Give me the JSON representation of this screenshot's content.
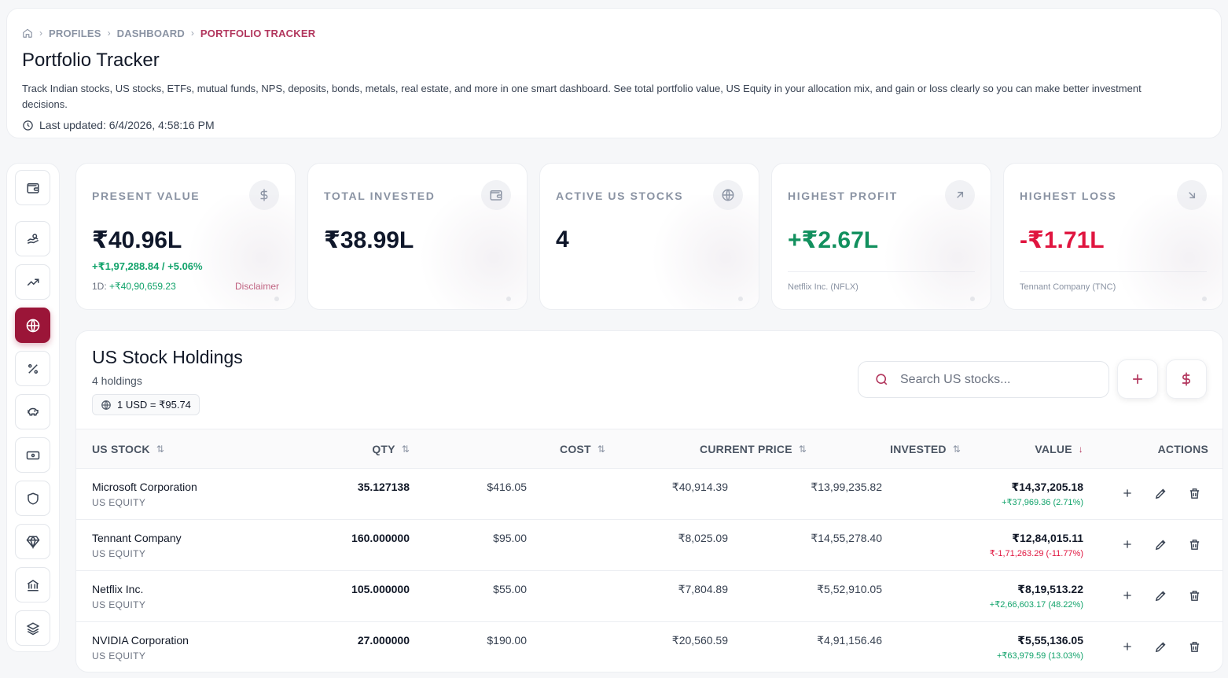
{
  "breadcrumb": {
    "items": [
      "PROFILES",
      "DASHBOARD",
      "PORTFOLIO TRACKER"
    ]
  },
  "page": {
    "title": "Portfolio Tracker",
    "description": "Track Indian stocks, US stocks, ETFs, mutual funds, NPS, deposits, bonds, metals, real estate, and more in one smart dashboard. See total portfolio value, US Equity in your allocation mix, and gain or loss clearly so you can make better investment decisions.",
    "last_updated": "Last updated: 6/4/2026, 4:58:16 PM"
  },
  "sidebar": {
    "items": [
      {
        "icon": "wallet-icon"
      },
      {
        "icon": "hand-coins-icon"
      },
      {
        "icon": "trending-up-icon"
      },
      {
        "icon": "globe-icon",
        "active": true
      },
      {
        "icon": "percent-icon"
      },
      {
        "icon": "piggy-bank-icon"
      },
      {
        "icon": "banknote-icon"
      },
      {
        "icon": "shield-icon"
      },
      {
        "icon": "gem-icon"
      },
      {
        "icon": "bank-icon"
      },
      {
        "icon": "layers-icon"
      }
    ]
  },
  "stats": {
    "present_value": {
      "label": "PRESENT VALUE",
      "value": "₹40.96L",
      "change": "+₹1,97,288.84 / +5.06%",
      "day_label": "1D:",
      "day_value": "+₹40,90,659.23",
      "disclaimer": "Disclaimer",
      "icon": "dollar-icon"
    },
    "total_invested": {
      "label": "TOTAL INVESTED",
      "value": "₹38.99L",
      "icon": "wallet-icon"
    },
    "active_us_stocks": {
      "label": "ACTIVE US STOCKS",
      "value": "4",
      "icon": "globe-icon"
    },
    "highest_profit": {
      "label": "HIGHEST PROFIT",
      "value": "+₹2.67L",
      "note": "Netflix Inc. (NFLX)",
      "icon": "arrow-up-right-icon"
    },
    "highest_loss": {
      "label": "HIGHEST LOSS",
      "value": "-₹1.71L",
      "note": "Tennant Company (TNC)",
      "icon": "arrow-down-right-icon"
    }
  },
  "holdings": {
    "title": "US Stock Holdings",
    "count": "4 holdings",
    "fx_rate": "1 USD = ₹95.74",
    "search_placeholder": "Search US stocks...",
    "columns": {
      "stock": "US STOCK",
      "qty": "QTY",
      "cost": "COST",
      "current_price": "CURRENT PRICE",
      "invested": "INVESTED",
      "value": "VALUE",
      "actions": "ACTIONS"
    },
    "sort_column": "VALUE",
    "sort_direction": "desc",
    "rows": [
      {
        "name": "Microsoft Corporation",
        "type": "US EQUITY",
        "qty": "35.127138",
        "cost": "$416.05",
        "price": "₹40,914.39",
        "invested": "₹13,99,235.82",
        "value": "₹14,37,205.18",
        "change": "+₹37,969.36 (2.71%)",
        "positive": true
      },
      {
        "name": "Tennant Company",
        "type": "US EQUITY",
        "qty": "160.000000",
        "cost": "$95.00",
        "price": "₹8,025.09",
        "invested": "₹14,55,278.40",
        "value": "₹12,84,015.11",
        "change": "₹-1,71,263.29 (-11.77%)",
        "positive": false
      },
      {
        "name": "Netflix Inc.",
        "type": "US EQUITY",
        "qty": "105.000000",
        "cost": "$55.00",
        "price": "₹7,804.89",
        "invested": "₹5,52,910.05",
        "value": "₹8,19,513.22",
        "change": "+₹2,66,603.17 (48.22%)",
        "positive": true
      },
      {
        "name": "NVIDIA Corporation",
        "type": "US EQUITY",
        "qty": "27.000000",
        "cost": "$190.00",
        "price": "₹20,560.59",
        "invested": "₹4,91,156.46",
        "value": "₹5,55,136.05",
        "change": "+₹63,979.59 (13.03%)",
        "positive": true
      }
    ]
  },
  "colors": {
    "accent": "#9b1538",
    "accent_text": "#b2365d",
    "positive": "#12a36b",
    "negative": "#e0153f"
  }
}
